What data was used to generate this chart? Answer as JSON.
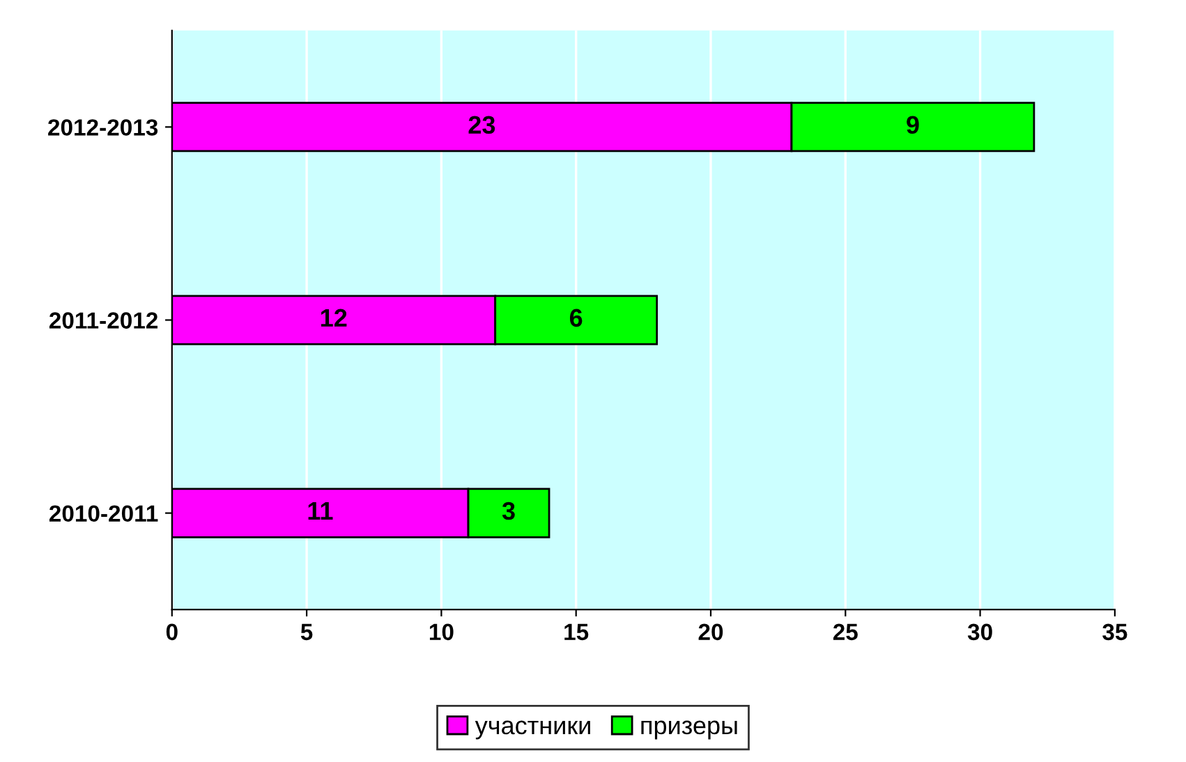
{
  "chart_data": {
    "type": "bar",
    "orientation": "horizontal",
    "stacked": true,
    "categories": [
      "2012-2013",
      "2011-2012",
      "2010-2011"
    ],
    "series": [
      {
        "name": "участники",
        "color": "#ff00ff",
        "values": [
          23,
          12,
          11
        ]
      },
      {
        "name": "призеры",
        "color": "#00ff00",
        "values": [
          9,
          6,
          3
        ]
      }
    ],
    "xlim": [
      0,
      35
    ],
    "xticks": [
      0,
      5,
      10,
      15,
      20,
      25,
      30,
      35
    ],
    "grid": "x",
    "legend": "bottom",
    "data_labels": true
  }
}
